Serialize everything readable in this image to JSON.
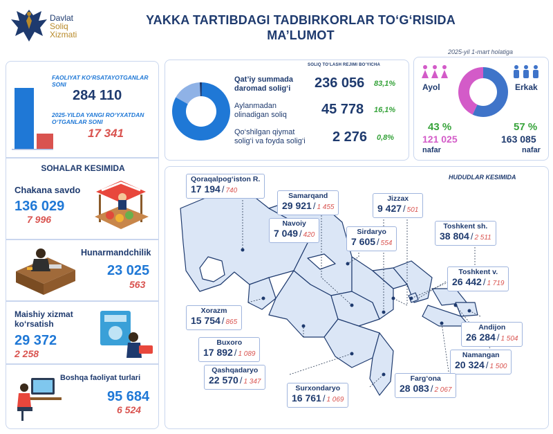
{
  "logo": {
    "line1": "Davlat",
    "line2": "Soliq",
    "line3": "Xizmati"
  },
  "title": {
    "line1": "YAKKA TARTIBDAGI TADBIRKORLAR TO‘G‘RISIDA",
    "line2": "MA’LUMOT"
  },
  "date_note": "2025-yil 1-mart holatiga",
  "summary": {
    "active_label": "FAOLIYAT KO‘RSATAYOTGANLAR SONI",
    "active_value": "284 110",
    "new_label": "2025-YILDA YANGI RO‘YXATDAN O‘TGANLAR SONI",
    "new_value": "17 341",
    "active_bar_share": 1.0,
    "new_bar_share": 0.06
  },
  "sectors": {
    "heading": "SOHALAR KESIMIDA",
    "items": [
      {
        "name": "Chakana savdo",
        "total": "136 029",
        "new": "7 996"
      },
      {
        "name": "Hunarmandchilik",
        "total": "23 025",
        "new": "563"
      },
      {
        "name": "Maishiy xizmat ko‘rsatish",
        "name1": "Maishiy xizmat",
        "name2": "ko‘rsatish",
        "total": "29 372",
        "new": "2 258"
      },
      {
        "name": "Boshqa faoliyat turlari",
        "total": "95 684",
        "new": "6 524"
      }
    ]
  },
  "tax_regime": {
    "heading": "SOLIQ TO‘LASH REJIMI BO‘YICHA",
    "items": [
      {
        "label1": "Qat’iy summada",
        "label2": "daromad solig‘i",
        "value": "236 056",
        "pct": "83,1%",
        "share": 0.831,
        "color": "#1f78d6"
      },
      {
        "label1": "Aylanmadan",
        "label2": "olinadigan soliq",
        "value": "45 778",
        "pct": "16,1%",
        "share": 0.161,
        "color": "#8fb2e6"
      },
      {
        "label1": "Qo‘shilgan qiymat",
        "label2": "solig‘i va foyda solig‘i",
        "value": "2 276",
        "pct": "0,8%",
        "share": 0.008,
        "color": "#1e3a6e"
      }
    ]
  },
  "gender": {
    "female_label": "Ayol",
    "male_label": "Erkak",
    "female_pct": "43 %",
    "male_pct": "57 %",
    "female_value": "121 025",
    "male_value": "163 085",
    "unit": "nafar",
    "female_share": 0.43,
    "male_share": 0.57,
    "female_color": "#d35bc8",
    "male_color": "#3f74c9"
  },
  "regions": {
    "heading": "HUDUDLAR KESIMIDA",
    "items": [
      {
        "name": "Qoraqalpog‘iston R.",
        "total": "17 194",
        "new": "740"
      },
      {
        "name": "Samarqand",
        "total": "29 921",
        "new": "1 455"
      },
      {
        "name": "Jizzax",
        "total": "9 427",
        "new": "501"
      },
      {
        "name": "Navoiy",
        "total": "7 049",
        "new": "420"
      },
      {
        "name": "Sirdaryo",
        "total": "7 605",
        "new": "554"
      },
      {
        "name": "Toshkent sh.",
        "total": "38 804",
        "new": "2 511"
      },
      {
        "name": "Toshkent v.",
        "total": "26 442",
        "new": "1 719"
      },
      {
        "name": "Xorazm",
        "total": "15 754",
        "new": "865"
      },
      {
        "name": "Andijon",
        "total": "26 284",
        "new": "1 504"
      },
      {
        "name": "Buxoro",
        "total": "17 892",
        "new": "1 089"
      },
      {
        "name": "Namangan",
        "total": "20 324",
        "new": "1 500"
      },
      {
        "name": "Qashqadaryo",
        "total": "22 570",
        "new": "1 347"
      },
      {
        "name": "Farg‘ona",
        "total": "28 083",
        "new": "2 067"
      },
      {
        "name": "Surxondaryo",
        "total": "16 761",
        "new": "1 069"
      }
    ]
  },
  "colors": {
    "navy": "#1e3a6e",
    "blue": "#1f78d6",
    "red": "#d9534f",
    "green": "#37a33b",
    "border": "#c9d6ee",
    "map_fill": "#dbe6f6"
  }
}
